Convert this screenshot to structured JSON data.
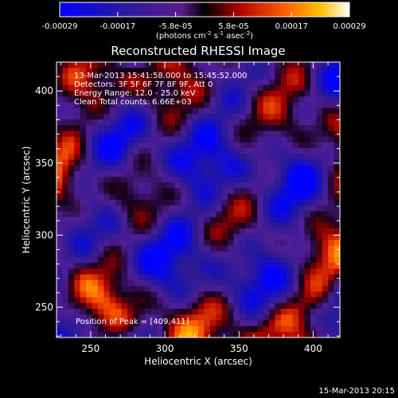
{
  "chart_data": {
    "type": "heatmap",
    "title": "Reconstructed RHESSI Image",
    "xlabel": "Heliocentric X (arcsec)",
    "ylabel": "Heliocentric Y (arcsec)",
    "xlim": [
      227,
      418
    ],
    "ylim": [
      229,
      420
    ],
    "x_ticks": [
      250,
      300,
      350,
      400
    ],
    "y_ticks": [
      250,
      300,
      350,
      400
    ],
    "colorbar": {
      "ticks": [
        "-0.00029",
        "-0.00017",
        "-5.8e-05",
        "5.8e-05",
        "0.00017",
        "0.00029"
      ],
      "range": [
        -0.00029,
        0.00029
      ],
      "unit_prefix": "(photons cm",
      "unit_exp1": "-2",
      "unit_mid1": " s",
      "unit_exp2": "-1",
      "unit_mid2": " asec",
      "unit_exp3": "-2",
      "unit_suffix": ")"
    },
    "annotations": {
      "time_range": "13-Mar-2013 15:41:58.000 to 15:45:52.000",
      "detectors": "Detectors: 3F 5F 6F 7F 8F 9F, Att 0",
      "energy": "Energy Range: 12.0 - 25.0 keV",
      "clean": "Clean     Total counts: 6.66E+03",
      "peak": "Position of Peak = [409,411]"
    },
    "peak_position": [
      409,
      411
    ]
  },
  "footer": {
    "timestamp": "15-Mar-2013 20:15"
  }
}
